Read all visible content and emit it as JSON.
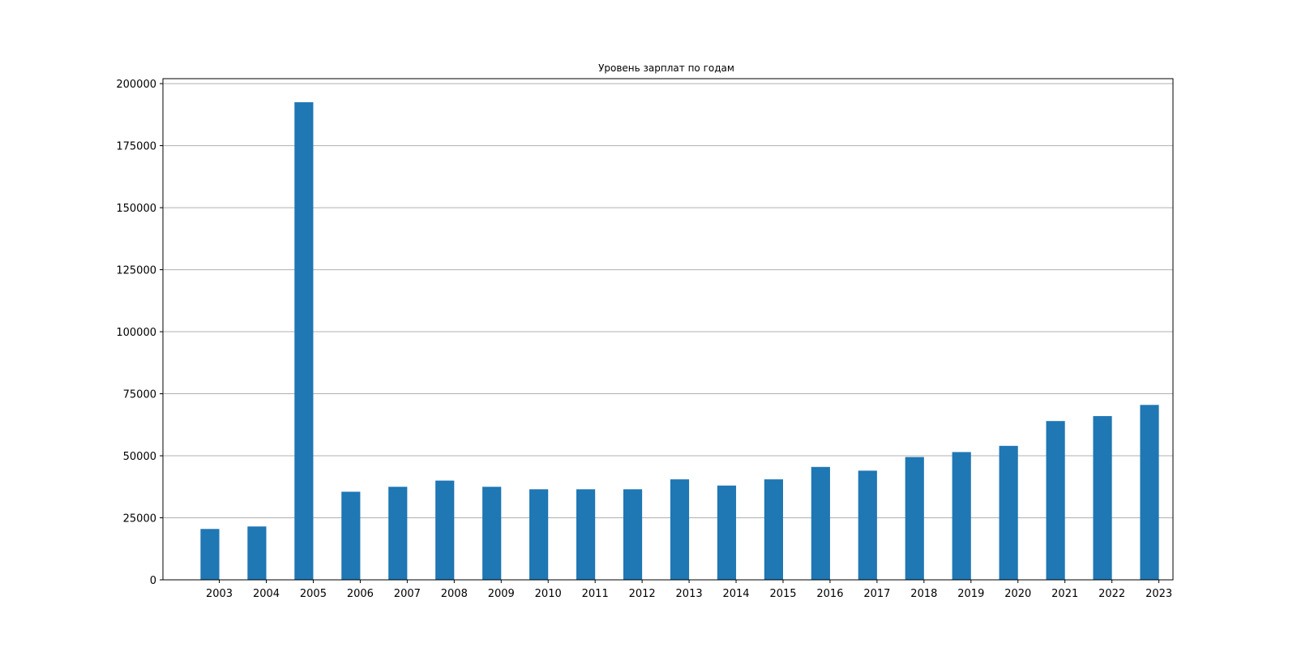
{
  "chart_data": {
    "type": "bar",
    "title": "Уровень зарплат по годам",
    "xlabel": "",
    "ylabel": "",
    "categories": [
      "2003",
      "2004",
      "2005",
      "2006",
      "2007",
      "2008",
      "2009",
      "2010",
      "2011",
      "2012",
      "2013",
      "2014",
      "2015",
      "2016",
      "2017",
      "2018",
      "2019",
      "2020",
      "2021",
      "2022",
      "2023"
    ],
    "values": [
      20500,
      21500,
      192500,
      35500,
      37500,
      40000,
      37500,
      36500,
      36500,
      36500,
      40500,
      38000,
      40500,
      45500,
      44000,
      49500,
      51500,
      54000,
      64000,
      66000,
      70500
    ],
    "ylim": [
      0,
      202000
    ],
    "yticks": [
      0,
      25000,
      50000,
      75000,
      100000,
      125000,
      150000,
      175000,
      200000
    ],
    "grid": "y",
    "bar_color": "#1f77b4",
    "grid_color": "#b0b0b0"
  }
}
